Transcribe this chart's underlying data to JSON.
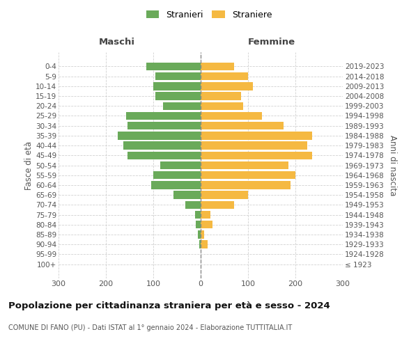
{
  "age_groups": [
    "100+",
    "95-99",
    "90-94",
    "85-89",
    "80-84",
    "75-79",
    "70-74",
    "65-69",
    "60-64",
    "55-59",
    "50-54",
    "45-49",
    "40-44",
    "35-39",
    "30-34",
    "25-29",
    "20-24",
    "15-19",
    "10-14",
    "5-9",
    "0-4"
  ],
  "birth_years": [
    "≤ 1923",
    "1924-1928",
    "1929-1933",
    "1934-1938",
    "1939-1943",
    "1944-1948",
    "1949-1953",
    "1954-1958",
    "1959-1963",
    "1964-1968",
    "1969-1973",
    "1974-1978",
    "1979-1983",
    "1984-1988",
    "1989-1993",
    "1994-1998",
    "1999-2003",
    "2004-2008",
    "2009-2013",
    "2014-2018",
    "2019-2023"
  ],
  "maschi": [
    0,
    0,
    3,
    6,
    10,
    12,
    32,
    58,
    105,
    100,
    85,
    155,
    163,
    175,
    155,
    158,
    80,
    95,
    100,
    95,
    115
  ],
  "femmine": [
    0,
    0,
    15,
    8,
    25,
    20,
    70,
    100,
    190,
    200,
    185,
    235,
    225,
    235,
    175,
    130,
    90,
    85,
    110,
    100,
    70
  ],
  "male_color": "#6aaa5a",
  "female_color": "#f5b942",
  "xlim": 300,
  "title": "Popolazione per cittadinanza straniera per età e sesso - 2024",
  "subtitle": "COMUNE DI FANO (PU) - Dati ISTAT al 1° gennaio 2024 - Elaborazione TUTTITALIA.IT",
  "legend_male": "Stranieri",
  "legend_female": "Straniere",
  "xlabel_left": "Maschi",
  "xlabel_right": "Femmine",
  "ylabel_left": "Fasce di età",
  "ylabel_right": "Anni di nascita",
  "background_color": "#ffffff",
  "grid_color": "#cccccc"
}
